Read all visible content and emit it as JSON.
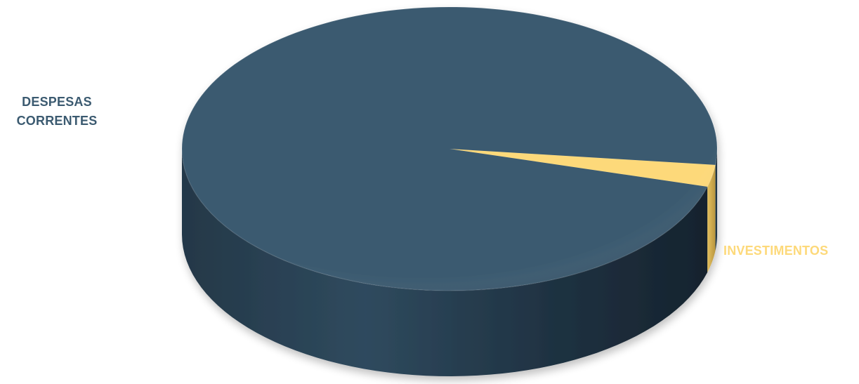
{
  "chart_data": {
    "type": "pie",
    "style": "3d",
    "categories": [
      "DESPESAS CORRENTES",
      "INVESTIMENTOS"
    ],
    "values": [
      97.5,
      2.5
    ],
    "colors": [
      "#3b5a70",
      "#fdd97a"
    ],
    "legend": "none",
    "labels_outside": true
  }
}
